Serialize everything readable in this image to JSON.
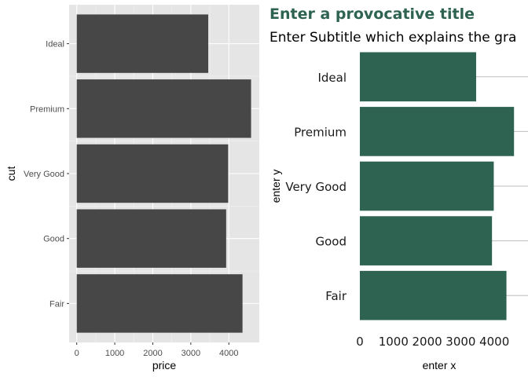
{
  "chart_data": [
    {
      "type": "bar",
      "orientation": "horizontal",
      "title": "",
      "subtitle": "",
      "xlabel": "price",
      "ylabel": "cut",
      "categories": [
        "Ideal",
        "Premium",
        "Very Good",
        "Good",
        "Fair"
      ],
      "values": [
        3458,
        4584,
        3982,
        3929,
        4359
      ],
      "xlim": [
        -200,
        4800
      ],
      "xticks": [
        0,
        1000,
        2000,
        3000,
        4000
      ],
      "grid": true,
      "panel_background": "#e5e5e5",
      "bar_color": "#474747",
      "legend": "none"
    },
    {
      "type": "bar",
      "orientation": "horizontal",
      "title": "Enter a provocative title",
      "subtitle": "Enter Subtitle which explains the gra",
      "xlabel": "enter x",
      "ylabel": "enter y",
      "categories": [
        "Ideal",
        "Premium",
        "Very Good",
        "Good",
        "Fair"
      ],
      "values": [
        3458,
        4584,
        3982,
        3929,
        4359
      ],
      "xlim": [
        0,
        4800
      ],
      "xticks": [
        0,
        1000,
        2000,
        3000,
        4000
      ],
      "grid": "horizontal-only",
      "panel_background": "#ffffff",
      "bar_color": "#2d6350",
      "title_color": "#2d6350",
      "legend": "none"
    }
  ]
}
